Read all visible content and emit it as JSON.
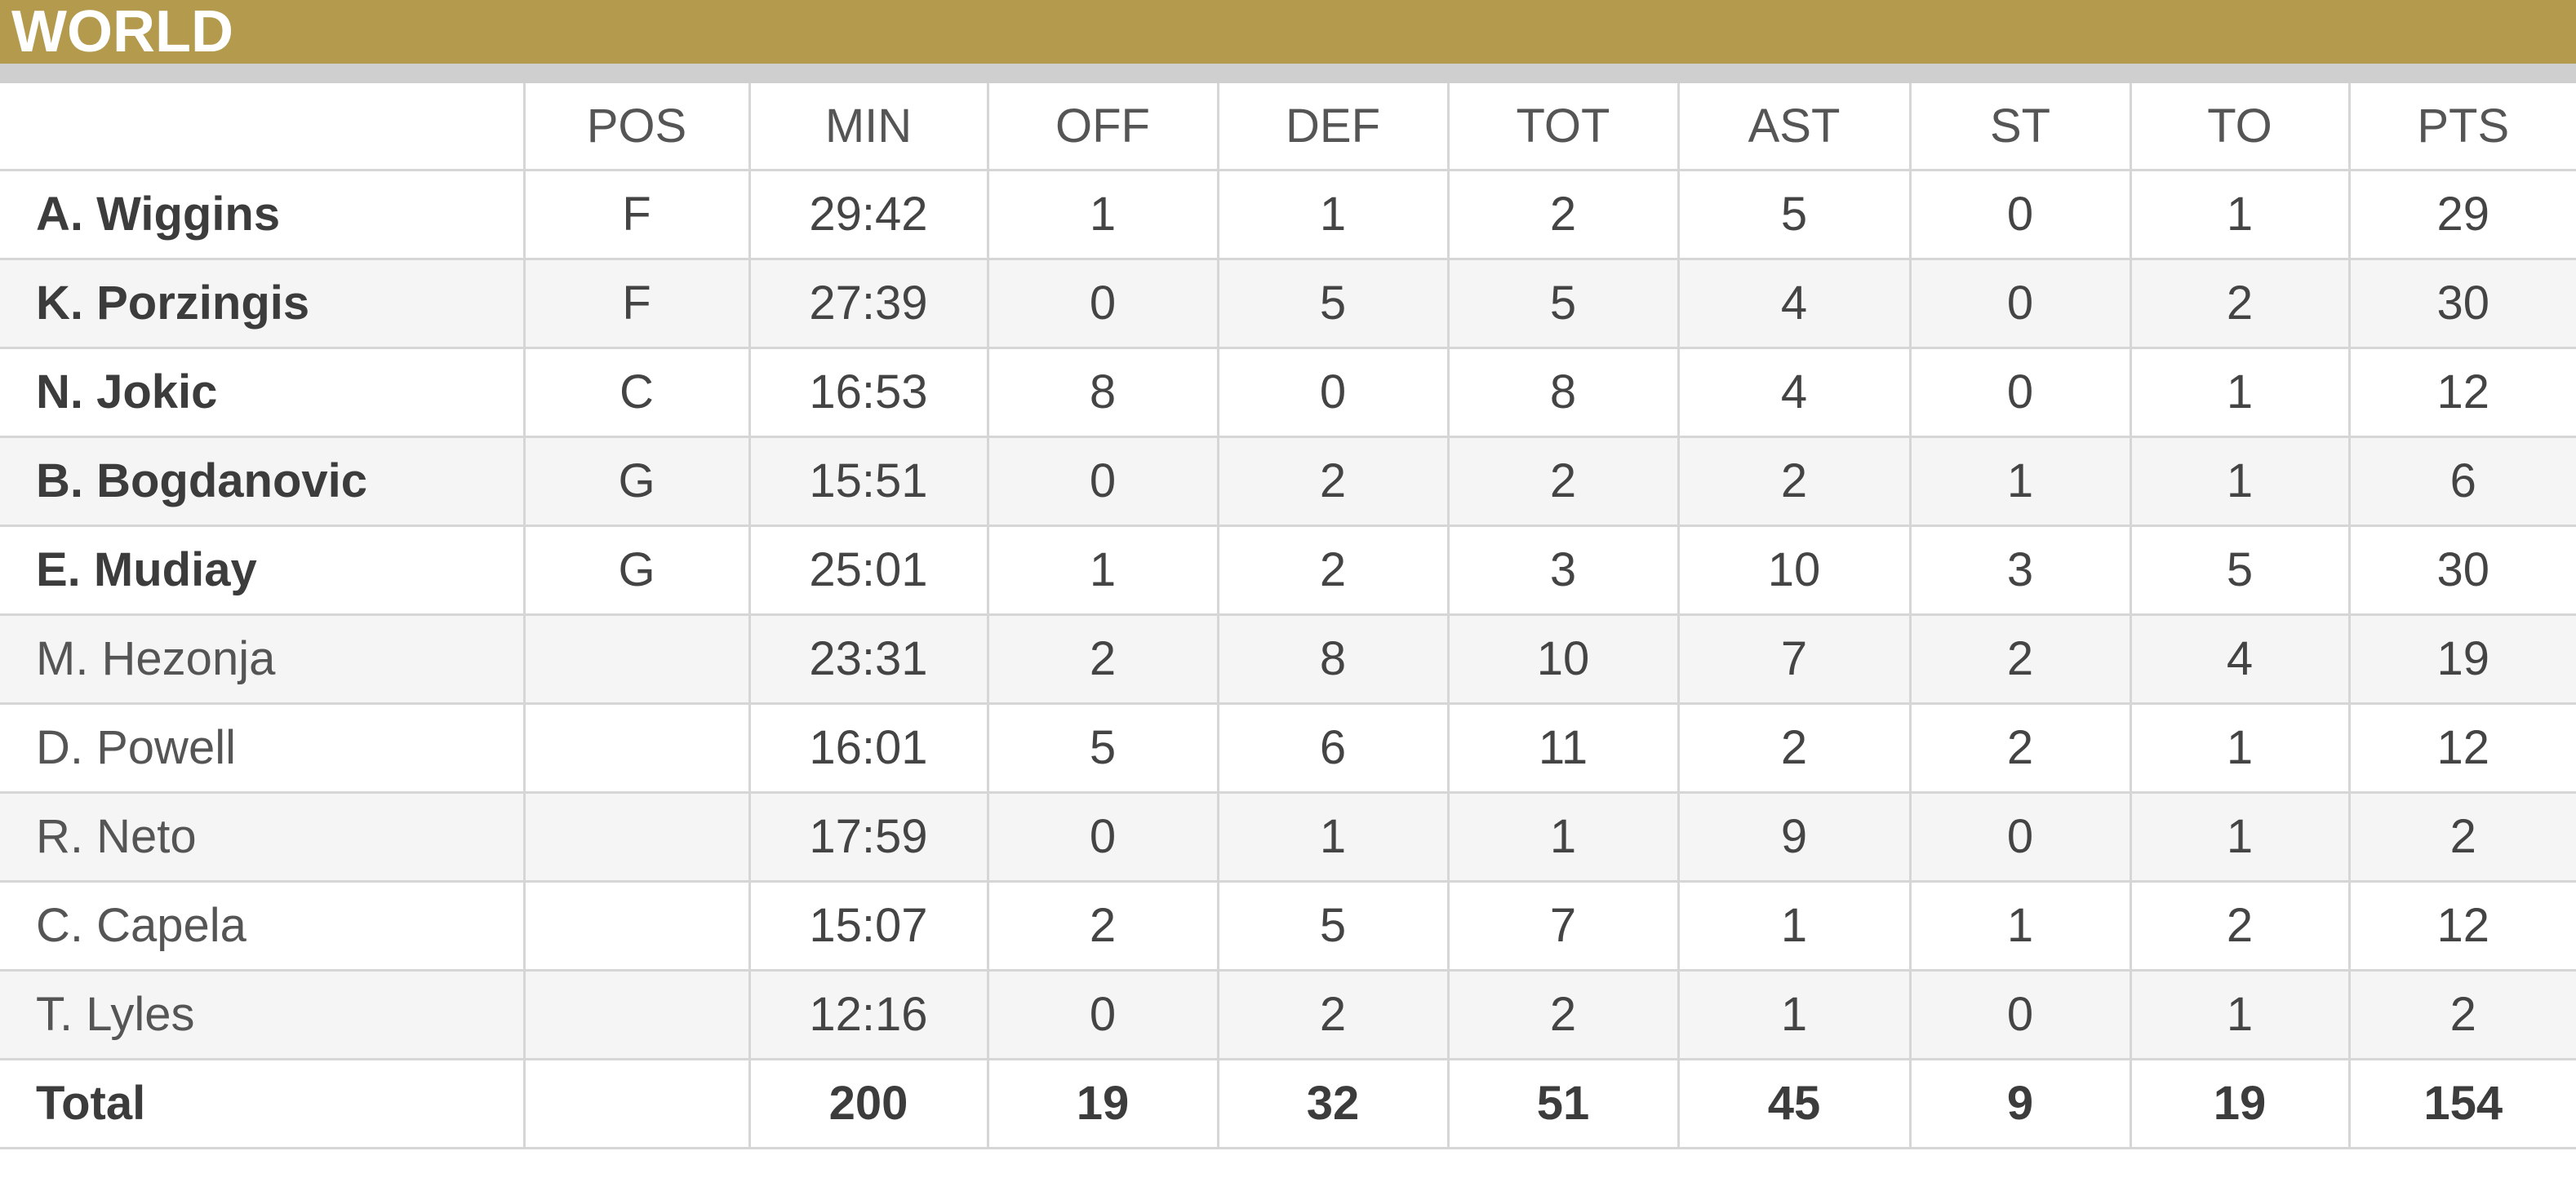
{
  "header": {
    "title": "WORLD"
  },
  "table": {
    "columns": [
      "",
      "POS",
      "MIN",
      "OFF",
      "DEF",
      "TOT",
      "AST",
      "ST",
      "TO",
      "PTS"
    ],
    "rows": [
      {
        "name": "A. Wiggins",
        "pos": "F",
        "min": "29:42",
        "off": "1",
        "def": "1",
        "tot": "2",
        "ast": "5",
        "st": "0",
        "to": "1",
        "pts": "29",
        "starter": true
      },
      {
        "name": "K. Porzingis",
        "pos": "F",
        "min": "27:39",
        "off": "0",
        "def": "5",
        "tot": "5",
        "ast": "4",
        "st": "0",
        "to": "2",
        "pts": "30",
        "starter": true
      },
      {
        "name": "N. Jokic",
        "pos": "C",
        "min": "16:53",
        "off": "8",
        "def": "0",
        "tot": "8",
        "ast": "4",
        "st": "0",
        "to": "1",
        "pts": "12",
        "starter": true
      },
      {
        "name": "B. Bogdanovic",
        "pos": "G",
        "min": "15:51",
        "off": "0",
        "def": "2",
        "tot": "2",
        "ast": "2",
        "st": "1",
        "to": "1",
        "pts": "6",
        "starter": true
      },
      {
        "name": "E. Mudiay",
        "pos": "G",
        "min": "25:01",
        "off": "1",
        "def": "2",
        "tot": "3",
        "ast": "10",
        "st": "3",
        "to": "5",
        "pts": "30",
        "starter": true
      },
      {
        "name": "M. Hezonja",
        "pos": "",
        "min": "23:31",
        "off": "2",
        "def": "8",
        "tot": "10",
        "ast": "7",
        "st": "2",
        "to": "4",
        "pts": "19",
        "starter": false
      },
      {
        "name": "D. Powell",
        "pos": "",
        "min": "16:01",
        "off": "5",
        "def": "6",
        "tot": "11",
        "ast": "2",
        "st": "2",
        "to": "1",
        "pts": "12",
        "starter": false
      },
      {
        "name": "R. Neto",
        "pos": "",
        "min": "17:59",
        "off": "0",
        "def": "1",
        "tot": "1",
        "ast": "9",
        "st": "0",
        "to": "1",
        "pts": "2",
        "starter": false
      },
      {
        "name": "C. Capela",
        "pos": "",
        "min": "15:07",
        "off": "2",
        "def": "5",
        "tot": "7",
        "ast": "1",
        "st": "1",
        "to": "2",
        "pts": "12",
        "starter": false
      },
      {
        "name": "T. Lyles",
        "pos": "",
        "min": "12:16",
        "off": "0",
        "def": "2",
        "tot": "2",
        "ast": "1",
        "st": "0",
        "to": "1",
        "pts": "2",
        "starter": false
      }
    ],
    "total": {
      "name": "Total",
      "pos": "",
      "min": "200",
      "off": "19",
      "def": "32",
      "tot": "51",
      "ast": "45",
      "st": "9",
      "to": "19",
      "pts": "154"
    }
  },
  "colors": {
    "header_bg": "#b39a4c",
    "header_rule": "#cfcfcf",
    "grid_line": "#d6d6d6",
    "row_alt": "#f5f5f5",
    "text": "#444444"
  }
}
